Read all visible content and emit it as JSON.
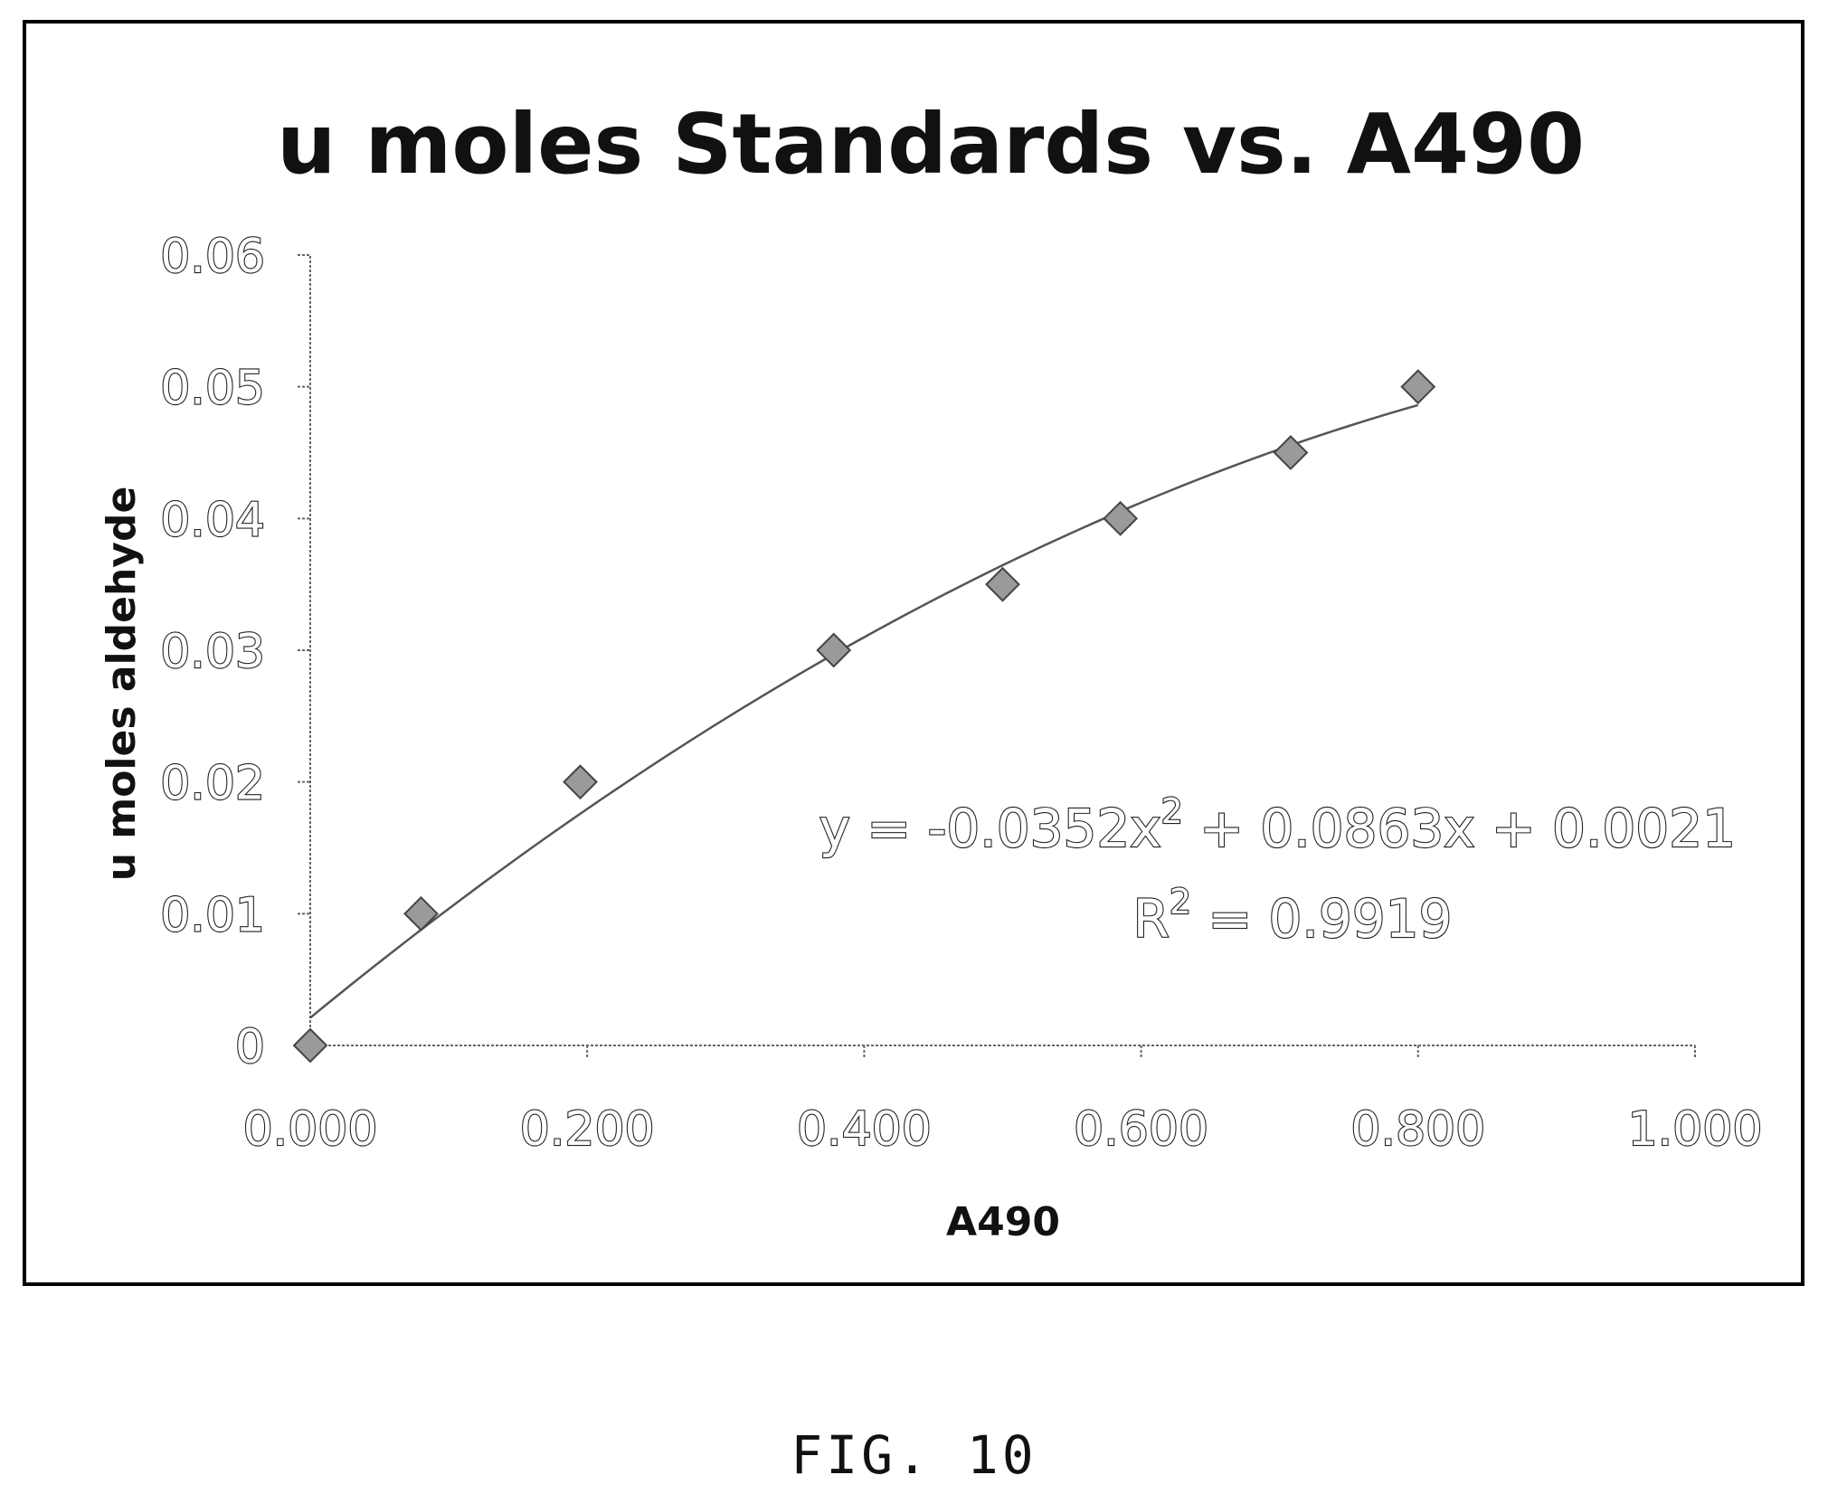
{
  "chart_data": {
    "type": "scatter",
    "title": "u moles Standards vs. A490",
    "xlabel": "A490",
    "ylabel": "u moles aldehyde",
    "xlim": [
      0,
      1
    ],
    "ylim": [
      0,
      0.06
    ],
    "x_ticks": [
      "0.000",
      "0.200",
      "0.400",
      "0.600",
      "0.800",
      "1.000"
    ],
    "y_ticks": [
      "0",
      "0.01",
      "0.02",
      "0.03",
      "0.04",
      "0.05",
      "0.06"
    ],
    "grid": false,
    "legend": "none",
    "series": [
      {
        "marker": "diamond",
        "x": [
          0.0,
          0.08,
          0.195,
          0.378,
          0.5,
          0.585,
          0.708,
          0.8
        ],
        "y": [
          0.0,
          0.01,
          0.02,
          0.03,
          0.035,
          0.04,
          0.045,
          0.05
        ]
      }
    ],
    "trendline": {
      "type": "polynomial",
      "order": 2,
      "coefficients": [
        -0.0352,
        0.0863,
        0.0021
      ],
      "x_range": [
        0,
        0.8
      ]
    },
    "annotations": {
      "equation_prefix": "y = -0.0352x",
      "equation_exp": "2",
      "equation_suffix": " + 0.0863x + 0.0021",
      "r2_prefix": "R",
      "r2_exp": "2",
      "r2_suffix": " = 0.9919"
    }
  },
  "caption": "FIG. 10"
}
